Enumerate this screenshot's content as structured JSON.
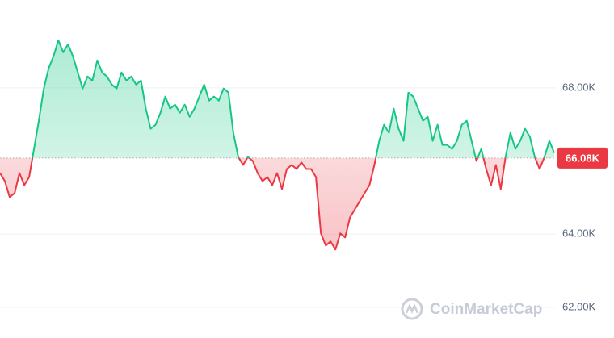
{
  "chart_data": {
    "type": "line",
    "watermark": "CoinMarketCap",
    "up_color": "#16c784",
    "down_color": "#ea3943",
    "values": [
      65670,
      65450,
      65010,
      65120,
      65670,
      65340,
      65560,
      66330,
      67100,
      67980,
      68530,
      68860,
      69300,
      68970,
      69190,
      68860,
      68420,
      67980,
      68310,
      68200,
      68750,
      68420,
      68310,
      68090,
      67980,
      68420,
      68200,
      68310,
      68090,
      68200,
      67430,
      66880,
      66990,
      67320,
      67760,
      67430,
      67540,
      67320,
      67540,
      67210,
      67430,
      67760,
      68090,
      67650,
      67760,
      67650,
      67980,
      67870,
      66770,
      66110,
      65890,
      66110,
      66000,
      65670,
      65450,
      65560,
      65340,
      65670,
      65230,
      65780,
      65890,
      65780,
      65960,
      65780,
      65780,
      65560,
      64020,
      63690,
      63800,
      63580,
      64020,
      63910,
      64460,
      64680,
      64900,
      65120,
      65340,
      65890,
      66550,
      66990,
      66770,
      67430,
      66880,
      66550,
      67870,
      67760,
      67430,
      67100,
      67210,
      66550,
      66990,
      66440,
      66440,
      66330,
      66550,
      66990,
      67100,
      66550,
      66000,
      66330,
      65780,
      65340,
      65890,
      65230,
      66110,
      66770,
      66330,
      66550,
      66880,
      66660,
      66110,
      65780,
      66110,
      66550,
      66220
    ],
    "baseline": {
      "value": 66080,
      "label": "66.08K"
    },
    "ylim": [
      61160,
      70400
    ],
    "yticks": [
      {
        "value": 62000,
        "label": "62.00K"
      },
      {
        "value": 64000,
        "label": "64.00K"
      },
      {
        "value": 68000,
        "label": "68.00K"
      }
    ],
    "grid": true
  }
}
